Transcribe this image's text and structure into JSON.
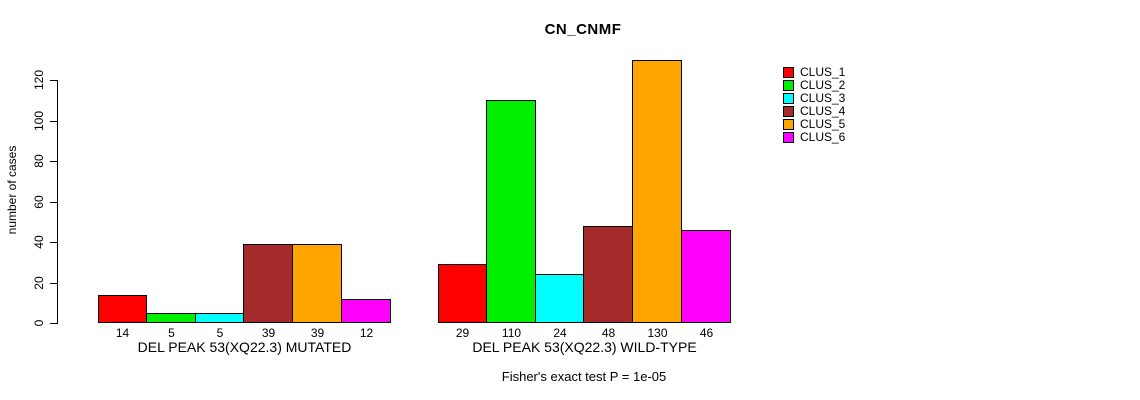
{
  "chart_data": {
    "type": "bar",
    "title": "CN_CNMF",
    "ylabel": "number of cases",
    "axis": {
      "yticks": [
        0,
        20,
        40,
        60,
        80,
        100,
        120
      ],
      "ylim": [
        0,
        130
      ],
      "grid": false
    },
    "clusters": [
      {
        "name": "CLUS_1",
        "color": "#FF0000"
      },
      {
        "name": "CLUS_2",
        "color": "#00EE00"
      },
      {
        "name": "CLUS_3",
        "color": "#00FFFF"
      },
      {
        "name": "CLUS_4",
        "color": "#A52A2A"
      },
      {
        "name": "CLUS_5",
        "color": "#FFA500"
      },
      {
        "name": "CLUS_6",
        "color": "#FF00FF"
      }
    ],
    "groups": [
      {
        "label": "DEL PEAK 53(XQ22.3) MUTATED",
        "values": [
          14,
          5,
          5,
          39,
          39,
          12
        ]
      },
      {
        "label": "DEL PEAK 53(XQ22.3) WILD-TYPE",
        "values": [
          29,
          110,
          24,
          48,
          130,
          46
        ]
      }
    ],
    "legend_position": "top-right",
    "annotation": "Fisher's exact test P = 1e-05"
  }
}
